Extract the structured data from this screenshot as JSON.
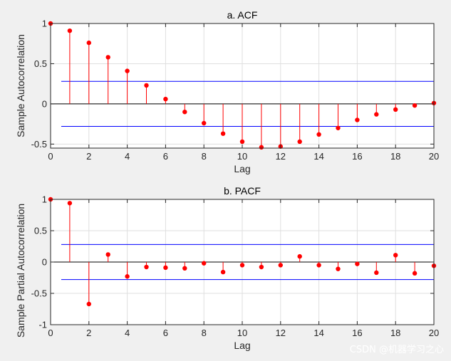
{
  "watermark": "CSDN @机器学习之心",
  "chart_data": [
    {
      "type": "stem",
      "title": "a. ACF",
      "xlabel": "Lag",
      "ylabel": "Sample Autocorrelation",
      "xlim": [
        0,
        20
      ],
      "ylim": [
        -0.55,
        1
      ],
      "xticks": [
        0,
        2,
        4,
        6,
        8,
        10,
        12,
        14,
        16,
        18,
        20
      ],
      "yticks": [
        -0.5,
        0,
        0.5,
        1
      ],
      "ytick_labels": [
        "-0.5",
        "0",
        "0.5",
        "1"
      ],
      "grid": true,
      "x": [
        0,
        1,
        2,
        3,
        4,
        5,
        6,
        7,
        8,
        9,
        10,
        11,
        12,
        13,
        14,
        15,
        16,
        17,
        18,
        19,
        20
      ],
      "values": [
        1.0,
        0.91,
        0.76,
        0.58,
        0.41,
        0.23,
        0.06,
        -0.1,
        -0.24,
        -0.37,
        -0.47,
        -0.54,
        -0.53,
        -0.47,
        -0.38,
        -0.3,
        -0.2,
        -0.13,
        -0.07,
        -0.02,
        0.01
      ],
      "bounds": [
        0.28,
        -0.28
      ],
      "colors": {
        "stem": "#ff0000",
        "bounds": "#0000ff"
      }
    },
    {
      "type": "stem",
      "title": "b. PACF",
      "xlabel": "Lag",
      "ylabel": "Sample Partial Autocorrelation",
      "xlim": [
        0,
        20
      ],
      "ylim": [
        -1,
        1
      ],
      "xticks": [
        0,
        2,
        4,
        6,
        8,
        10,
        12,
        14,
        16,
        18,
        20
      ],
      "yticks": [
        -1,
        -0.5,
        0,
        0.5,
        1
      ],
      "ytick_labels": [
        "-1",
        "-0.5",
        "0",
        "0.5",
        "1"
      ],
      "grid": true,
      "x": [
        0,
        1,
        2,
        3,
        4,
        5,
        6,
        7,
        8,
        9,
        10,
        11,
        12,
        13,
        14,
        15,
        16,
        17,
        18,
        19,
        20
      ],
      "values": [
        1.0,
        0.94,
        -0.67,
        0.12,
        -0.23,
        -0.08,
        -0.09,
        -0.1,
        -0.02,
        -0.16,
        -0.05,
        -0.08,
        -0.05,
        0.09,
        -0.05,
        -0.11,
        -0.03,
        -0.17,
        0.11,
        -0.18,
        -0.06
      ],
      "bounds": [
        0.28,
        -0.28
      ],
      "colors": {
        "stem": "#ff0000",
        "bounds": "#0000ff"
      }
    }
  ]
}
